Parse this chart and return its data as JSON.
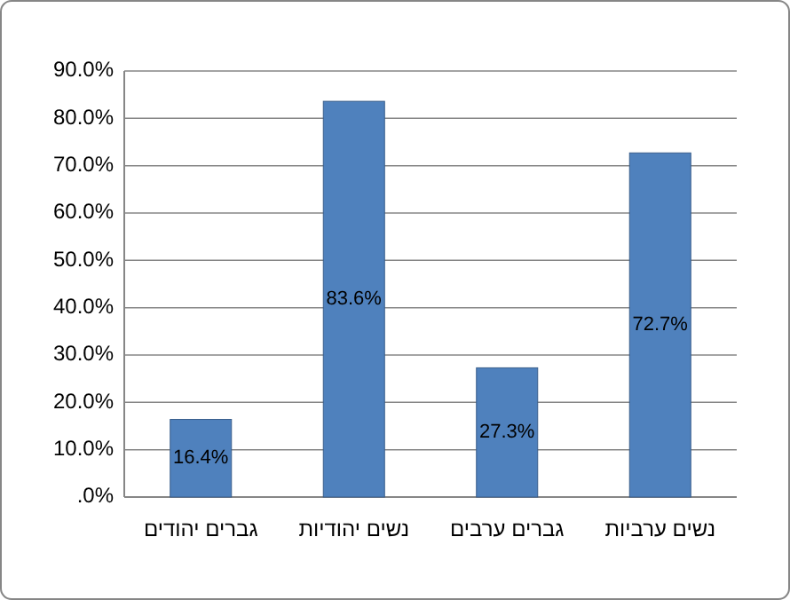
{
  "chart_data": {
    "type": "bar",
    "categories": [
      "גברים יהודים",
      "נשים יהודיות",
      "גברים ערבים",
      "נשים ערביות"
    ],
    "values": [
      16.4,
      83.6,
      27.3,
      72.7
    ],
    "value_labels": [
      "16.4%",
      "83.6%",
      "27.3%",
      "72.7%"
    ],
    "color": "#4f81bd",
    "ylim": [
      0,
      90
    ],
    "yticks": [
      {
        "value": 0,
        "label": ".0%"
      },
      {
        "value": 10,
        "label": "10.0%"
      },
      {
        "value": 20,
        "label": "20.0%"
      },
      {
        "value": 30,
        "label": "30.0%"
      },
      {
        "value": 40,
        "label": "40.0%"
      },
      {
        "value": 50,
        "label": "50.0%"
      },
      {
        "value": 60,
        "label": "60.0%"
      },
      {
        "value": 70,
        "label": "70.0%"
      },
      {
        "value": 80,
        "label": "80.0%"
      },
      {
        "value": 90,
        "label": "90.0%"
      }
    ],
    "grid": "y"
  }
}
